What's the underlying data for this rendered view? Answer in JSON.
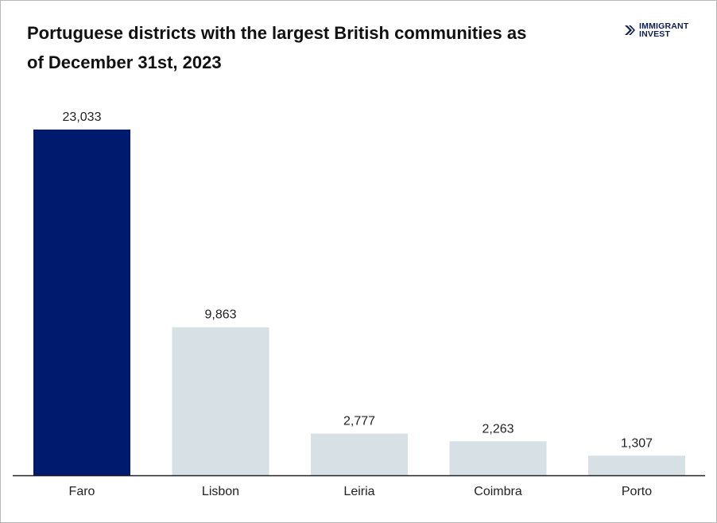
{
  "brand": {
    "icon": "double-chevron-icon",
    "line1": "IMMIGRANT",
    "line2": "INVEST"
  },
  "colors": {
    "highlight": "#001a6e",
    "bar": "#d6e0e5",
    "axis": "#222222",
    "text": "#222222"
  },
  "chart_data": {
    "type": "bar",
    "title": "Portuguese districts with the largest British communities as of December 31st, 2023",
    "categories": [
      "Faro",
      "Lisbon",
      "Leiria",
      "Coimbra",
      "Porto"
    ],
    "values": [
      23033,
      9863,
      2777,
      2263,
      1307
    ],
    "value_labels": [
      "23,033",
      "9,863",
      "2,777",
      "2,263",
      "1,307"
    ],
    "highlighted_index": 0,
    "ylim": [
      0,
      23033
    ],
    "grid": false,
    "legend": "none",
    "xlabel": "",
    "ylabel": ""
  }
}
